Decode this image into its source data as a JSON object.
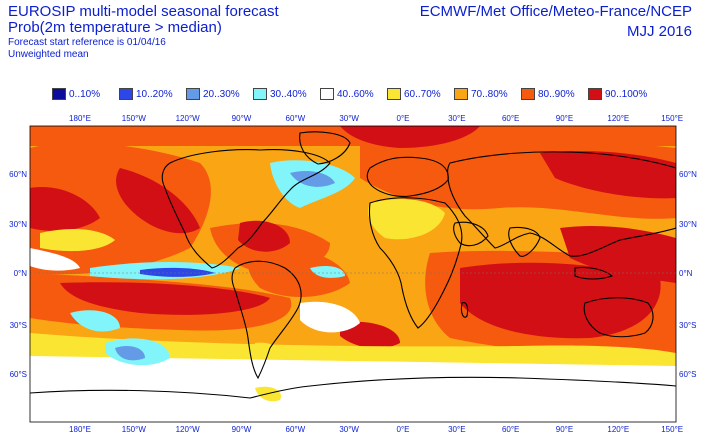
{
  "header": {
    "title": "EUROSIP multi-model seasonal forecast",
    "subtitle": "Prob(2m temperature > median)",
    "start_reference": "Forecast start reference is 01/04/16",
    "weighting": "Unweighted mean",
    "source": "ECMWF/Met Office/Meteo-France/NCEP",
    "period": "MJJ 2016"
  },
  "legend": [
    {
      "label": "0..10%",
      "color": "#0c0c9c"
    },
    {
      "label": "10..20%",
      "color": "#2d46e6"
    },
    {
      "label": "20..30%",
      "color": "#649be6"
    },
    {
      "label": "30..40%",
      "color": "#82f5fa"
    },
    {
      "label": "40..60%",
      "color": "#ffffff"
    },
    {
      "label": "60..70%",
      "color": "#fae632"
    },
    {
      "label": "70..80%",
      "color": "#faa514"
    },
    {
      "label": "80..90%",
      "color": "#f55a0f"
    },
    {
      "label": "90..100%",
      "color": "#d20f14"
    }
  ],
  "lon_labels": [
    "180°E",
    "150°W",
    "120°W",
    "90°W",
    "60°W",
    "30°W",
    "0°E",
    "30°E",
    "60°E",
    "90°E",
    "120°E",
    "150°E"
  ],
  "lat_labels": [
    "60°N",
    "30°N",
    "0°N",
    "30°S",
    "60°S"
  ]
}
